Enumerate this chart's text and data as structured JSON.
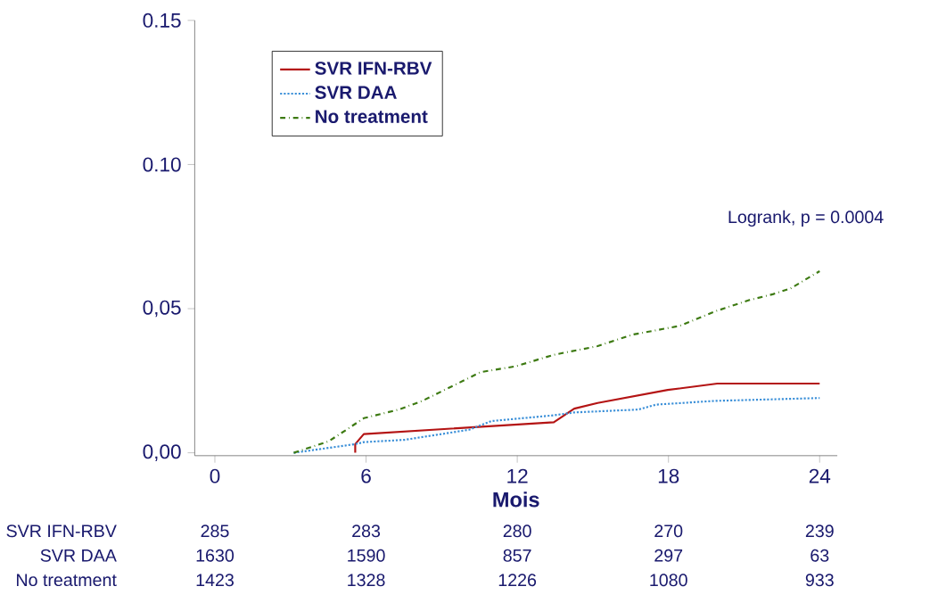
{
  "chart_data": {
    "type": "line",
    "xlabel": "Mois",
    "xlim": [
      -0.8,
      24.7
    ],
    "ylim": [
      -0.001,
      0.15
    ],
    "xticks": [
      0,
      6,
      12,
      18,
      24
    ],
    "yticks": [
      {
        "value": 0,
        "label": "0,00"
      },
      {
        "value": 0.05,
        "label": "0,05"
      },
      {
        "value": 0.1,
        "label": "0.10"
      },
      {
        "value": 0.15,
        "label": "0.15"
      }
    ],
    "legend": "top left",
    "grid": false,
    "series": [
      {
        "name": "SVR IFN-RBV",
        "color": "#b41414",
        "line_style": "solid",
        "x": [
          5.57,
          5.57,
          5.91,
          13.45,
          14.26,
          15.19,
          17.97,
          19.94,
          24
        ],
        "values": [
          0,
          0.003,
          0.0065,
          0.0106,
          0.0153,
          0.0173,
          0.0218,
          0.024,
          0.024
        ]
      },
      {
        "name": "SVR DAA",
        "color": "#3a8fd8",
        "line_style": "dotted",
        "x": [
          3.13,
          5.57,
          5.91,
          7.53,
          10.09,
          10.97,
          13.45,
          14.26,
          16.81,
          17.5,
          19.83,
          24
        ],
        "values": [
          0,
          0.003,
          0.0037,
          0.0045,
          0.008,
          0.011,
          0.013,
          0.014,
          0.015,
          0.0167,
          0.018,
          0.019
        ]
      },
      {
        "name": "No treatment",
        "color": "#3d7a12",
        "line_style": "dashdot",
        "x": [
          3.13,
          4.52,
          5.22,
          5.91,
          7.3,
          8.23,
          9.16,
          9.86,
          10.55,
          11.94,
          13.45,
          15.19,
          16.58,
          18.43,
          19.83,
          21.22,
          22.14,
          22.84,
          24
        ],
        "values": [
          0,
          0.004,
          0.008,
          0.012,
          0.015,
          0.018,
          0.022,
          0.025,
          0.028,
          0.03,
          0.034,
          0.037,
          0.041,
          0.044,
          0.049,
          0.053,
          0.055,
          0.057,
          0.063
        ]
      }
    ],
    "annotations": [
      "Logrank, p = 0.0004",
      "SVR IFN-RBV",
      "285",
      "283",
      "280",
      "270",
      "239",
      "SVR DAA",
      "1630",
      "1590",
      "857",
      "297",
      "63",
      "No treatment",
      "1423",
      "1328",
      "1226",
      "1080",
      "933"
    ]
  }
}
